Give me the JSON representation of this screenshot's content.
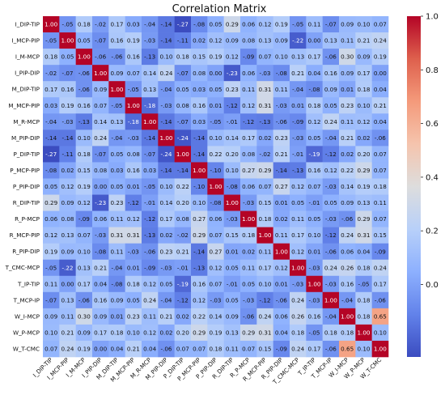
{
  "chart_data": {
    "type": "heatmap",
    "title": "Correlation Matrix",
    "labels": [
      "I_DIP-TIP",
      "I_MCP-PIP",
      "I_M-MCP",
      "I_PIP-DIP",
      "M_DIP-TIP",
      "M_MCP-PIP",
      "M_R-MCP",
      "M_PIP-DIP",
      "P_DIP-TIP",
      "P_MCP-PIP",
      "P_PIP-DIP",
      "R_DIP-TIP",
      "R_P-MCP",
      "R_MCP-PIP",
      "R_PIP-DIP",
      "T_CMC-MCP",
      "T_IP-TIP",
      "T_MCP-IP",
      "W_I-MCP",
      "W_P-MCP",
      "W_T-CMC"
    ],
    "matrix": [
      [
        1.0,
        -0.05,
        0.18,
        -0.02,
        0.17,
        0.03,
        -0.04,
        -0.14,
        -0.27,
        -0.08,
        0.05,
        0.29,
        0.06,
        0.12,
        0.19,
        -0.05,
        0.11,
        -0.07,
        0.09,
        0.1,
        0.07
      ],
      [
        -0.05,
        1.0,
        0.05,
        -0.07,
        0.16,
        0.19,
        -0.03,
        -0.14,
        -0.11,
        0.02,
        0.12,
        0.09,
        0.08,
        0.13,
        0.09,
        -0.22,
        0.0,
        0.13,
        0.11,
        0.21,
        0.24
      ],
      [
        0.18,
        0.05,
        1.0,
        -0.06,
        -0.06,
        0.16,
        -0.13,
        0.1,
        0.18,
        0.15,
        0.19,
        0.12,
        -0.09,
        0.07,
        0.1,
        0.13,
        0.17,
        -0.06,
        0.3,
        0.09,
        0.19
      ],
      [
        -0.02,
        -0.07,
        -0.06,
        1.0,
        0.09,
        0.07,
        0.14,
        0.24,
        -0.07,
        0.08,
        0.0,
        -0.23,
        0.06,
        -0.03,
        -0.08,
        0.21,
        0.04,
        0.16,
        0.09,
        0.17,
        0.0
      ],
      [
        0.17,
        0.16,
        -0.06,
        0.09,
        1.0,
        -0.05,
        0.13,
        -0.04,
        0.05,
        0.03,
        0.05,
        0.23,
        0.11,
        0.31,
        0.11,
        -0.04,
        -0.08,
        0.09,
        0.01,
        0.18,
        0.04
      ],
      [
        0.03,
        0.19,
        0.16,
        0.07,
        -0.05,
        1.0,
        -0.18,
        -0.03,
        0.08,
        0.16,
        0.01,
        -0.12,
        0.12,
        0.31,
        -0.03,
        0.01,
        0.18,
        0.05,
        0.23,
        0.1,
        0.21
      ],
      [
        -0.04,
        -0.03,
        -0.13,
        0.14,
        0.13,
        -0.18,
        1.0,
        -0.14,
        -0.07,
        0.03,
        -0.05,
        -0.01,
        -0.12,
        -0.13,
        -0.06,
        -0.09,
        0.12,
        0.24,
        0.11,
        0.12,
        0.04
      ],
      [
        -0.14,
        -0.14,
        0.1,
        0.24,
        -0.04,
        -0.03,
        -0.14,
        1.0,
        -0.24,
        -0.14,
        0.1,
        0.14,
        0.17,
        0.02,
        0.23,
        -0.03,
        0.05,
        -0.04,
        0.21,
        0.02,
        -0.06
      ],
      [
        -0.27,
        -0.11,
        0.18,
        -0.07,
        0.05,
        0.08,
        -0.07,
        -0.24,
        1.0,
        -0.14,
        0.22,
        0.2,
        0.08,
        -0.02,
        0.21,
        -0.01,
        -0.19,
        -0.12,
        0.02,
        0.2,
        0.07
      ],
      [
        -0.08,
        0.02,
        0.15,
        0.08,
        0.03,
        0.16,
        0.03,
        -0.14,
        -0.14,
        1.0,
        -0.1,
        0.1,
        0.27,
        0.29,
        -0.14,
        -0.13,
        0.16,
        0.12,
        0.22,
        0.29,
        0.07
      ],
      [
        0.05,
        0.12,
        0.19,
        0.0,
        0.05,
        0.01,
        -0.05,
        0.1,
        0.22,
        -0.1,
        1.0,
        -0.08,
        0.06,
        0.07,
        0.27,
        0.12,
        0.07,
        -0.03,
        0.14,
        0.19,
        0.18
      ],
      [
        0.29,
        0.09,
        0.12,
        -0.23,
        0.23,
        -0.12,
        -0.01,
        0.14,
        0.2,
        0.1,
        -0.08,
        1.0,
        -0.03,
        0.15,
        0.01,
        0.05,
        -0.01,
        0.05,
        0.09,
        0.13,
        0.11
      ],
      [
        0.06,
        0.08,
        -0.09,
        0.06,
        0.11,
        0.12,
        -0.12,
        0.17,
        0.08,
        0.27,
        0.06,
        -0.03,
        1.0,
        0.18,
        0.02,
        0.11,
        0.05,
        -0.03,
        -0.06,
        0.29,
        0.07
      ],
      [
        0.12,
        0.13,
        0.07,
        -0.03,
        0.31,
        0.31,
        -0.13,
        0.02,
        -0.02,
        0.29,
        0.07,
        0.15,
        0.18,
        1.0,
        0.11,
        0.17,
        0.1,
        -0.12,
        0.24,
        0.31,
        0.15
      ],
      [
        0.19,
        0.09,
        0.1,
        -0.08,
        0.11,
        -0.03,
        -0.06,
        0.23,
        0.21,
        -0.14,
        0.27,
        0.01,
        0.02,
        0.11,
        1.0,
        0.12,
        0.01,
        -0.06,
        0.06,
        0.04,
        -0.09
      ],
      [
        -0.05,
        -0.22,
        0.13,
        0.21,
        -0.04,
        0.01,
        -0.09,
        -0.03,
        -0.01,
        -0.13,
        0.12,
        0.05,
        0.11,
        0.17,
        0.12,
        1.0,
        -0.03,
        0.24,
        0.26,
        0.18,
        0.24
      ],
      [
        0.11,
        0.0,
        0.17,
        0.04,
        -0.08,
        0.18,
        0.12,
        0.05,
        -0.19,
        0.16,
        0.07,
        -0.01,
        0.05,
        0.1,
        0.01,
        -0.03,
        1.0,
        -0.03,
        0.16,
        -0.05,
        0.17
      ],
      [
        -0.07,
        0.13,
        -0.06,
        0.16,
        0.09,
        0.05,
        0.24,
        -0.04,
        -0.12,
        0.12,
        -0.03,
        0.05,
        -0.03,
        -0.12,
        -0.06,
        0.24,
        -0.03,
        1.0,
        -0.04,
        0.18,
        -0.06
      ],
      [
        0.09,
        0.11,
        0.3,
        0.09,
        0.01,
        0.23,
        0.11,
        0.21,
        0.02,
        0.22,
        0.14,
        0.09,
        -0.06,
        0.24,
        0.06,
        0.26,
        0.16,
        -0.04,
        1.0,
        0.18,
        0.65
      ],
      [
        0.1,
        0.21,
        0.09,
        0.17,
        0.18,
        0.1,
        0.12,
        0.02,
        0.2,
        0.29,
        0.19,
        0.13,
        0.29,
        0.31,
        0.04,
        0.18,
        -0.05,
        0.18,
        0.18,
        1.0,
        0.1
      ],
      [
        0.07,
        0.24,
        0.19,
        0.0,
        0.04,
        0.21,
        0.04,
        -0.06,
        0.07,
        0.07,
        0.18,
        0.11,
        0.07,
        0.15,
        -0.09,
        0.24,
        0.17,
        -0.06,
        0.65,
        0.1,
        1.0
      ]
    ],
    "colormap": "coolwarm",
    "vmin": -0.27,
    "vmax": 1.0,
    "colorbar_ticks": [
      0.0,
      0.2,
      0.4,
      0.6,
      0.8,
      1.0
    ],
    "colorbar_tick_labels": [
      "0.0",
      "0.2",
      "0.4",
      "0.6",
      "0.8",
      "1.0"
    ],
    "annotation_format": "2 decimals, leading zero dropped on negatives"
  }
}
